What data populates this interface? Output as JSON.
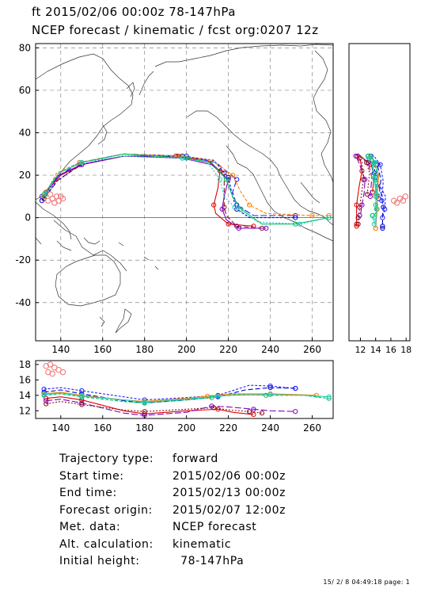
{
  "header": {
    "line1": "ft 2015/02/06 00:00z  78-147hPa",
    "line2": "NCEP forecast / kinematic / fcst org:0207 12z"
  },
  "chart_data": [
    {
      "type": "line",
      "panel": "map",
      "xlim": [
        128,
        270
      ],
      "ylim": [
        -58,
        82
      ],
      "xticks": [
        140,
        160,
        180,
        200,
        220,
        240,
        260
      ],
      "yticks": [
        -40,
        -20,
        0,
        20,
        40,
        60,
        80
      ],
      "grid": true,
      "series": [
        {
          "color": "#e00000",
          "points": [
            [
              133,
              12
            ],
            [
              140,
              20
            ],
            [
              150,
              25
            ],
            [
              170,
              29
            ],
            [
              195,
              29
            ],
            [
              210,
              27
            ],
            [
              216,
              22
            ],
            [
              215,
              14
            ],
            [
              213,
              6
            ],
            [
              214,
              2
            ],
            [
              220,
              -3
            ],
            [
              232,
              -4
            ]
          ]
        },
        {
          "color": "#8a1020",
          "points": [
            [
              132,
              9
            ],
            [
              139,
              18
            ],
            [
              150,
              25
            ],
            [
              170,
              29
            ],
            [
              196,
              29
            ],
            [
              211,
              26
            ],
            [
              218,
              21
            ],
            [
              218,
              12
            ],
            [
              218,
              5
            ],
            [
              219,
              1
            ],
            [
              224,
              -4
            ],
            [
              236,
              -5
            ]
          ]
        },
        {
          "color": "#0000cc",
          "points": [
            [
              131,
              8
            ],
            [
              138,
              17
            ],
            [
              149,
              25
            ],
            [
              170,
              29
            ],
            [
              198,
              29
            ],
            [
              213,
              27
            ],
            [
              220,
              19
            ],
            [
              222,
              10
            ],
            [
              224,
              4
            ],
            [
              230,
              0
            ],
            [
              252,
              0
            ]
          ]
        },
        {
          "color": "#2020ff",
          "points": [
            [
              131,
              10
            ],
            [
              138,
              19
            ],
            [
              149,
              26
            ],
            [
              170,
              30
            ],
            [
              200,
              29
            ],
            [
              214,
              26
            ],
            [
              224,
              18
            ],
            [
              222,
              12
            ],
            [
              224,
              6
            ],
            [
              232,
              1
            ],
            [
              252,
              1
            ]
          ]
        },
        {
          "color": "#8000c0",
          "points": [
            [
              132,
              10
            ],
            [
              139,
              20
            ],
            [
              150,
              25
            ],
            [
              170,
              29
            ],
            [
              198,
              28
            ],
            [
              212,
              25
            ],
            [
              220,
              18
            ],
            [
              218,
              10
            ],
            [
              217,
              4
            ],
            [
              219,
              -1
            ],
            [
              225,
              -5
            ],
            [
              238,
              -5
            ]
          ]
        },
        {
          "color": "#ff8000",
          "points": [
            [
              132,
              10
            ],
            [
              138,
              21
            ],
            [
              149,
              26
            ],
            [
              170,
              30
            ],
            [
              197,
              29
            ],
            [
              212,
              27
            ],
            [
              222,
              20
            ],
            [
              226,
              12
            ],
            [
              230,
              6
            ],
            [
              238,
              2
            ],
            [
              260,
              1
            ],
            [
              268,
              1
            ]
          ]
        },
        {
          "color": "#00c060",
          "points": [
            [
              132,
              11
            ],
            [
              139,
              21
            ],
            [
              150,
              26
            ],
            [
              170,
              30
            ],
            [
              200,
              28
            ],
            [
              212,
              26
            ],
            [
              219,
              18
            ],
            [
              222,
              10
            ],
            [
              226,
              4
            ],
            [
              236,
              -3
            ],
            [
              252,
              -3
            ],
            [
              268,
              0
            ]
          ]
        },
        {
          "color": "#20d0c0",
          "points": [
            [
              133,
              11
            ],
            [
              139,
              21
            ],
            [
              150,
              26
            ],
            [
              170,
              29
            ],
            [
              198,
              28
            ],
            [
              210,
              26
            ],
            [
              216,
              18
            ],
            [
              218,
              10
            ],
            [
              223,
              5
            ],
            [
              234,
              -2
            ],
            [
              254,
              -3
            ],
            [
              268,
              0
            ]
          ]
        }
      ],
      "start_cluster": [
        [
          134,
          8
        ],
        [
          136,
          9
        ],
        [
          138,
          10
        ],
        [
          139,
          8
        ],
        [
          137,
          7
        ],
        [
          140,
          10
        ],
        [
          141,
          9
        ],
        [
          135,
          11
        ]
      ]
    },
    {
      "type": "line",
      "panel": "side",
      "xlim": [
        10.5,
        18.5
      ],
      "xticks": [
        12,
        14,
        16,
        18
      ],
      "tick_labels": [
        "12",
        "14",
        "16",
        "18"
      ]
    },
    {
      "type": "line",
      "panel": "height",
      "xlim": [
        128,
        270
      ],
      "ylim": [
        11,
        18.5
      ],
      "xticks": [
        140,
        160,
        180,
        200,
        220,
        240,
        260
      ],
      "yticks": [
        12,
        14,
        16,
        18
      ],
      "series": [
        {
          "color": "#e00000",
          "points": [
            [
              133,
              13.6
            ],
            [
              140,
              13.8
            ],
            [
              150,
              13.4
            ],
            [
              170,
              12.0
            ],
            [
              180,
              11.6
            ],
            [
              200,
              12.0
            ],
            [
              215,
              12.2
            ],
            [
              222,
              11.8
            ],
            [
              232,
              11.5
            ]
          ]
        },
        {
          "color": "#0000cc",
          "points": [
            [
              132,
              14.4
            ],
            [
              140,
              14.7
            ],
            [
              150,
              14.2
            ],
            [
              170,
              13.3
            ],
            [
              180,
              13.0
            ],
            [
              200,
              13.4
            ],
            [
              215,
              13.8
            ],
            [
              228,
              14.7
            ],
            [
              240,
              15.0
            ],
            [
              252,
              14.9
            ]
          ]
        },
        {
          "color": "#2020ff",
          "points": [
            [
              132,
              14.8
            ],
            [
              140,
              15.0
            ],
            [
              150,
              14.6
            ],
            [
              170,
              13.8
            ],
            [
              180,
              13.4
            ],
            [
              200,
              13.7
            ],
            [
              215,
              14.0
            ],
            [
              230,
              15.3
            ],
            [
              240,
              15.2
            ],
            [
              252,
              14.9
            ]
          ]
        },
        {
          "color": "#8000c0",
          "points": [
            [
              133,
              13.3
            ],
            [
              140,
              13.5
            ],
            [
              150,
              13.0
            ],
            [
              170,
              11.7
            ],
            [
              180,
              11.4
            ],
            [
              200,
              11.8
            ],
            [
              212,
              12.6
            ],
            [
              220,
              12.5
            ],
            [
              232,
              12.2
            ],
            [
              240,
              12.0
            ],
            [
              252,
              11.9
            ]
          ]
        },
        {
          "color": "#ff8000",
          "points": [
            [
              132,
              14.2
            ],
            [
              140,
              14.4
            ],
            [
              150,
              14.0
            ],
            [
              170,
              13.4
            ],
            [
              180,
              13.2
            ],
            [
              200,
              13.6
            ],
            [
              210,
              13.9
            ],
            [
              222,
              14.2
            ],
            [
              240,
              14.2
            ],
            [
              252,
              14.1
            ],
            [
              262,
              14.0
            ]
          ]
        },
        {
          "color": "#00c060",
          "points": [
            [
              132,
              14.0
            ],
            [
              140,
              14.2
            ],
            [
              150,
              13.8
            ],
            [
              170,
              13.2
            ],
            [
              180,
              13.0
            ],
            [
              200,
              13.4
            ],
            [
              212,
              13.7
            ],
            [
              222,
              14.1
            ],
            [
              238,
              14.0
            ],
            [
              256,
              14.0
            ],
            [
              268,
              13.6
            ]
          ]
        },
        {
          "color": "#20d0c0",
          "points": [
            [
              132,
              14.1
            ],
            [
              140,
              14.3
            ],
            [
              150,
              13.9
            ],
            [
              170,
              13.4
            ],
            [
              180,
              13.1
            ],
            [
              200,
              13.5
            ],
            [
              215,
              13.9
            ],
            [
              222,
              14.0
            ],
            [
              240,
              14.1
            ],
            [
              256,
              14.0
            ],
            [
              268,
              13.8
            ]
          ]
        },
        {
          "color": "#8a1020",
          "points": [
            [
              133,
              12.9
            ],
            [
              140,
              13.2
            ],
            [
              150,
              12.8
            ],
            [
              170,
              12.1
            ],
            [
              180,
              11.9
            ],
            [
              200,
              12.2
            ],
            [
              213,
              12.4
            ],
            [
              220,
              12.1
            ],
            [
              230,
              11.9
            ],
            [
              236,
              11.7
            ]
          ]
        }
      ],
      "start_cluster": [
        [
          133,
          17.8
        ],
        [
          135,
          18.0
        ],
        [
          137,
          17.6
        ],
        [
          139,
          17.3
        ],
        [
          134,
          17.0
        ],
        [
          136,
          16.8
        ],
        [
          141,
          17.0
        ]
      ]
    }
  ],
  "info": [
    {
      "label": "Trajectory type:",
      "value": "forward"
    },
    {
      "label": "Start time:",
      "value": "2015/02/06 00:00z"
    },
    {
      "label": "End time:",
      "value": "2015/02/13 00:00z"
    },
    {
      "label": "Forecast origin:",
      "value": "2015/02/07 12:00z"
    },
    {
      "label": "Met. data:",
      "value": "NCEP forecast"
    },
    {
      "label": "Alt. calculation:",
      "value": "kinematic"
    },
    {
      "label": "Initial height:",
      "value": "  78-147hPa"
    }
  ],
  "footer": "15/ 2/ 8 04:49:18 page: 1"
}
